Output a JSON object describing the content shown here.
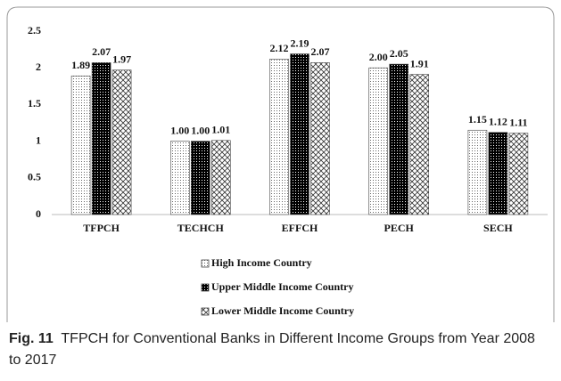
{
  "chart_data": {
    "type": "bar",
    "categories": [
      "TFPCH",
      "TECHCH",
      "EFFCH",
      "PECH",
      "SECH"
    ],
    "series": [
      {
        "name": "High Income Country",
        "pattern": "dots",
        "values": [
          1.89,
          1.0,
          2.12,
          2.0,
          1.15
        ],
        "value_labels": [
          "1.89",
          "1.00",
          "2.12",
          "2.00",
          "1.15"
        ]
      },
      {
        "name": "Upper Middle Income Country",
        "pattern": "dense",
        "values": [
          2.07,
          1.0,
          2.19,
          2.05,
          1.12
        ],
        "value_labels": [
          "2.07",
          "1.00",
          "2.19",
          "2.05",
          "1.12"
        ]
      },
      {
        "name": "Lower Middle Income Country",
        "pattern": "hatch",
        "values": [
          1.97,
          1.01,
          2.07,
          1.91,
          1.11
        ],
        "value_labels": [
          "1.97",
          "1.01",
          "2.07",
          "1.91",
          "1.11"
        ]
      }
    ],
    "ylim": [
      0,
      2.5
    ],
    "yticks": [
      0,
      0.5,
      1,
      1.5,
      2,
      2.5
    ],
    "grid": false,
    "legend": "bottom"
  },
  "caption": {
    "label": "Fig. 11",
    "text": "TFPCH for Conventional Banks in Different Income Groups from Year 2008 to 2017"
  }
}
